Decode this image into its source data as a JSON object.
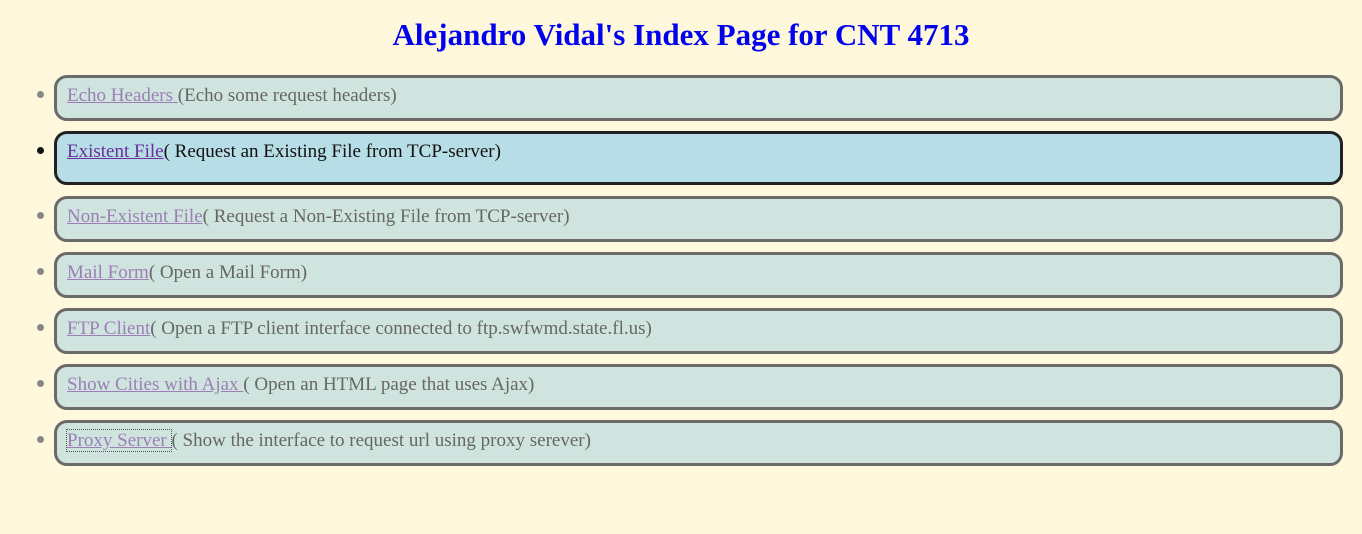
{
  "page": {
    "title": "Alejandro Vidal's Index Page for CNT 4713"
  },
  "items": [
    {
      "link": "Echo Headers ",
      "desc": "(Echo some request headers)"
    },
    {
      "link": "Existent File",
      "desc": "( Request an Existing File from TCP-server)"
    },
    {
      "link": "Non-Existent File",
      "desc": "( Request a Non-Existing File from TCP-server)"
    },
    {
      "link": "Mail Form",
      "desc": "( Open a Mail Form)"
    },
    {
      "link": "FTP Client",
      "desc": "( Open a FTP client interface connected to ftp.swfwmd.state.fl.us)"
    },
    {
      "link": "Show Cities with Ajax ",
      "desc": "( Open an HTML page that uses Ajax)"
    },
    {
      "link": "Proxy Server ",
      "desc": "( Show the interface to request url using proxy serever)"
    }
  ],
  "colors": {
    "background": "#fff8dc",
    "title": "#0000ee",
    "item_bg": "#cfe4df",
    "active_item_bg": "#b7dde6",
    "link": "#9b7fb5"
  }
}
